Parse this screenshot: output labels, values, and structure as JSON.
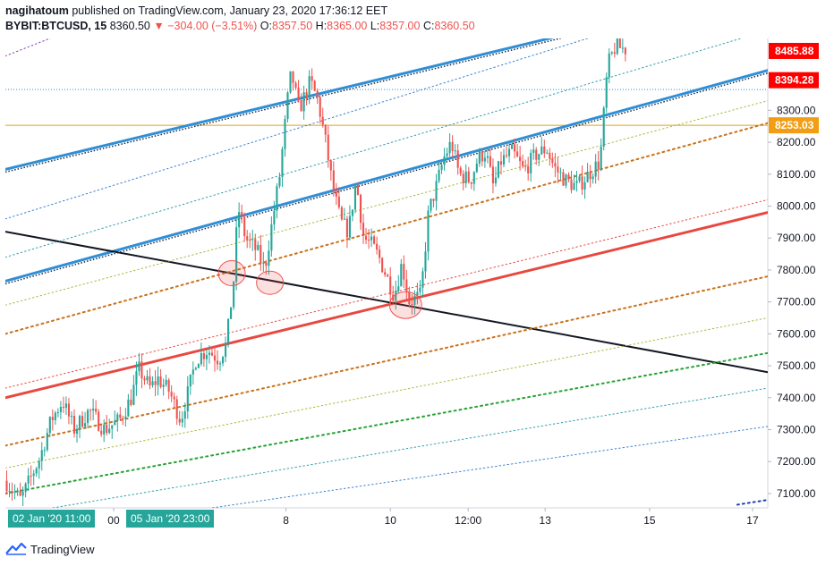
{
  "header": {
    "author": "nagihatoum",
    "published": "published on TradingView.com, January 23, 2020 17:36:12 EET",
    "symbol": "BYBIT:BTCUSD, 15",
    "last": "8360.50",
    "change": "−304.00 (−3.51%)",
    "o_label": "O:",
    "o_value": "8357.50",
    "h_label": "H:",
    "h_value": "8365.00",
    "l_label": "L:",
    "l_value": "8357.00",
    "c_label": "C:",
    "c_value": "8360.50"
  },
  "footer": {
    "brand": "TradingView"
  },
  "colors": {
    "up": "#26a69a",
    "down": "#ef5350",
    "blue": "#2f8fd6",
    "red": "#e8483f",
    "black": "#131722",
    "orange": "#c9711a",
    "olive": "#a9b83a",
    "green": "#27a333",
    "gold": "#e0a21a"
  },
  "chart_data": {
    "type": "candlestick",
    "y_axis": {
      "ylim": [
        7055,
        8525
      ],
      "ticks": [
        "7100.00",
        "7200.00",
        "7300.00",
        "7400.00",
        "7500.00",
        "7600.00",
        "7700.00",
        "7800.00",
        "7900.00",
        "8000.00",
        "8100.00",
        "8200.00",
        "8300.00"
      ]
    },
    "x_axis": {
      "ticks": [
        {
          "label": "00",
          "t": 0.142
        },
        {
          "label": "8",
          "t": 0.368
        },
        {
          "label": "10",
          "t": 0.505
        },
        {
          "label": "12:00",
          "t": 0.607
        },
        {
          "label": "13",
          "t": 0.708
        },
        {
          "label": "15",
          "t": 0.845
        },
        {
          "label": "17",
          "t": 0.98
        }
      ]
    },
    "time_tags": [
      "02 Jan '20   11:00",
      "05 Jan '20   23:00"
    ],
    "price_labels": [
      {
        "value": "8485.88",
        "price": 8485.88,
        "color": "#ff0000"
      },
      {
        "value": "8394.28",
        "price": 8394.28,
        "color": "#ff0000"
      },
      {
        "value": "8253.03",
        "price": 8253.03,
        "color": "#f29d13"
      }
    ],
    "horizontal_lines": [
      {
        "price": 8365,
        "color": "#2f8fd6",
        "style": "dotted"
      },
      {
        "price": 8253,
        "color": "#e0a21a",
        "style": "solid"
      }
    ],
    "series_path": [
      [
        0.0,
        7140
      ],
      [
        0.02,
        7080
      ],
      [
        0.045,
        7210
      ],
      [
        0.06,
        7330
      ],
      [
        0.075,
        7390
      ],
      [
        0.09,
        7300
      ],
      [
        0.11,
        7360
      ],
      [
        0.13,
        7300
      ],
      [
        0.15,
        7330
      ],
      [
        0.165,
        7400
      ],
      [
        0.175,
        7490
      ],
      [
        0.19,
        7430
      ],
      [
        0.2,
        7460
      ],
      [
        0.215,
        7420
      ],
      [
        0.23,
        7330
      ],
      [
        0.24,
        7420
      ],
      [
        0.25,
        7520
      ],
      [
        0.265,
        7550
      ],
      [
        0.28,
        7520
      ],
      [
        0.29,
        7570
      ],
      [
        0.3,
        7780
      ],
      [
        0.305,
        8000
      ],
      [
        0.315,
        7900
      ],
      [
        0.33,
        7860
      ],
      [
        0.34,
        7800
      ],
      [
        0.35,
        7950
      ],
      [
        0.36,
        8100
      ],
      [
        0.37,
        8330
      ],
      [
        0.375,
        8420
      ],
      [
        0.385,
        8300
      ],
      [
        0.4,
        8390
      ],
      [
        0.41,
        8330
      ],
      [
        0.42,
        8200
      ],
      [
        0.43,
        8050
      ],
      [
        0.44,
        7950
      ],
      [
        0.45,
        7920
      ],
      [
        0.46,
        8080
      ],
      [
        0.47,
        7900
      ],
      [
        0.48,
        7880
      ],
      [
        0.49,
        7840
      ],
      [
        0.5,
        7780
      ],
      [
        0.51,
        7720
      ],
      [
        0.52,
        7820
      ],
      [
        0.53,
        7700
      ],
      [
        0.545,
        7720
      ],
      [
        0.555,
        7980
      ],
      [
        0.565,
        8060
      ],
      [
        0.575,
        8150
      ],
      [
        0.585,
        8200
      ],
      [
        0.595,
        8100
      ],
      [
        0.61,
        8080
      ],
      [
        0.62,
        8150
      ],
      [
        0.63,
        8170
      ],
      [
        0.64,
        8060
      ],
      [
        0.65,
        8140
      ],
      [
        0.665,
        8170
      ],
      [
        0.68,
        8110
      ],
      [
        0.695,
        8160
      ],
      [
        0.71,
        8180
      ],
      [
        0.72,
        8120
      ],
      [
        0.735,
        8080
      ],
      [
        0.75,
        8060
      ],
      [
        0.765,
        8100
      ],
      [
        0.78,
        8140
      ],
      [
        0.79,
        8440
      ],
      [
        0.8,
        8500
      ],
      [
        0.815,
        8490
      ]
    ],
    "channels": [
      {
        "name": "blue-upper",
        "x1": 0.0,
        "y1": 8115,
        "x2": 1.0,
        "y2": 8690,
        "color": "#2f8fd6",
        "width": 3,
        "style": "solid",
        "shadow": true
      },
      {
        "name": "blue-lower",
        "x1": 0.0,
        "y1": 7765,
        "x2": 1.0,
        "y2": 8425,
        "color": "#2f8fd6",
        "width": 3,
        "style": "solid",
        "shadow": true
      },
      {
        "name": "red",
        "x1": 0.0,
        "y1": 7400,
        "x2": 1.0,
        "y2": 7980,
        "color": "#e8483f",
        "width": 3,
        "style": "solid"
      },
      {
        "name": "black",
        "x1": 0.0,
        "y1": 7920,
        "x2": 1.0,
        "y2": 7480,
        "color": "#131722",
        "width": 2,
        "style": "solid"
      },
      {
        "name": "orange-1",
        "x1": 0.0,
        "y1": 7600,
        "x2": 1.0,
        "y2": 8260,
        "color": "#c9711a",
        "width": 2,
        "style": "dotted"
      },
      {
        "name": "orange-2",
        "x1": 0.0,
        "y1": 7250,
        "x2": 1.0,
        "y2": 7780,
        "color": "#c9711a",
        "width": 2,
        "style": "dotted"
      },
      {
        "name": "red-dotted",
        "x1": 0.0,
        "y1": 7430,
        "x2": 1.0,
        "y2": 8020,
        "color": "#e8483f",
        "width": 1,
        "style": "dotted"
      },
      {
        "name": "green",
        "x1": 0.0,
        "y1": 7100,
        "x2": 1.0,
        "y2": 7540,
        "color": "#27a333",
        "width": 2,
        "style": "dotted"
      },
      {
        "name": "olive-1",
        "x1": 0.0,
        "y1": 7180,
        "x2": 1.0,
        "y2": 7650,
        "color": "#a9b83a",
        "width": 1,
        "style": "dotted"
      },
      {
        "name": "olive-2",
        "x1": 0.0,
        "y1": 7690,
        "x2": 1.0,
        "y2": 8330,
        "color": "#a9b83a",
        "width": 1,
        "style": "dotted"
      },
      {
        "name": "teal-1",
        "x1": 0.0,
        "y1": 7840,
        "x2": 1.0,
        "y2": 8550,
        "color": "#2e9bb0",
        "width": 1,
        "style": "dotted"
      },
      {
        "name": "teal-2",
        "x1": 0.0,
        "y1": 7960,
        "x2": 1.0,
        "y2": 8700,
        "color": "#3a7fd0",
        "width": 1,
        "style": "dotted"
      },
      {
        "name": "teal-3",
        "x1": 0.0,
        "y1": 7030,
        "x2": 1.0,
        "y2": 7430,
        "color": "#2e9bb0",
        "width": 1,
        "style": "dotted"
      },
      {
        "name": "blue-bottom",
        "x1": 0.0,
        "y1": 6960,
        "x2": 1.0,
        "y2": 7310,
        "color": "#3a7fd0",
        "width": 1,
        "style": "dotted"
      },
      {
        "name": "purple",
        "x1": 0.0,
        "y1": 8470,
        "x2": 0.35,
        "y2": 8800,
        "color": "#8a3fb5",
        "width": 1,
        "style": "dotted"
      },
      {
        "name": "blue-dark-end",
        "x1": 0.96,
        "y1": 7065,
        "x2": 1.0,
        "y2": 7080,
        "color": "#1a3fb5",
        "width": 2,
        "style": "dotted"
      }
    ],
    "highlights": [
      {
        "t": 0.297,
        "price": 7790,
        "rx": 15,
        "ry": 14
      },
      {
        "t": 0.347,
        "price": 7760,
        "rx": 15,
        "ry": 13
      },
      {
        "t": 0.525,
        "price": 7690,
        "rx": 18,
        "ry": 15
      }
    ]
  }
}
